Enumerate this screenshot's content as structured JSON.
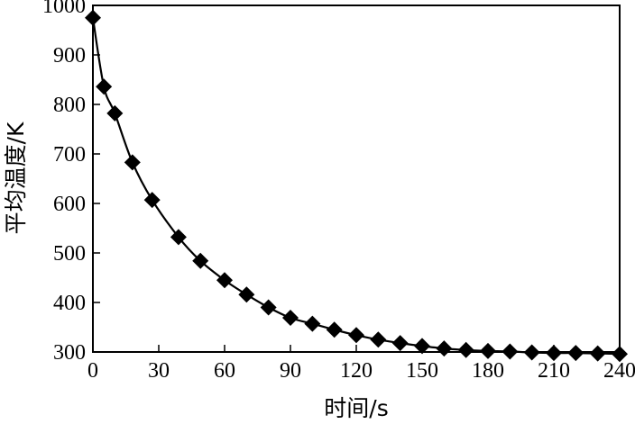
{
  "chart_data": {
    "type": "line",
    "title": "",
    "xlabel": "时间/s",
    "ylabel": "平均温度/K",
    "xlim": [
      0,
      240
    ],
    "ylim": [
      300,
      1000
    ],
    "xticks": [
      0,
      30,
      60,
      90,
      120,
      150,
      180,
      210,
      240
    ],
    "yticks": [
      300,
      400,
      500,
      600,
      700,
      800,
      900,
      1000
    ],
    "grid": false,
    "legend": "none",
    "series": [
      {
        "marker": "diamond",
        "color": "#000000",
        "points": [
          [
            0,
            975
          ],
          [
            5,
            836
          ],
          [
            10,
            782
          ],
          [
            18,
            683
          ],
          [
            27,
            607
          ],
          [
            39,
            532
          ],
          [
            49,
            484
          ],
          [
            60,
            445
          ],
          [
            70,
            416
          ],
          [
            80,
            390
          ],
          [
            90,
            369
          ],
          [
            100,
            357
          ],
          [
            110,
            345
          ],
          [
            120,
            334
          ],
          [
            130,
            325
          ],
          [
            140,
            318
          ],
          [
            150,
            312
          ],
          [
            160,
            307
          ],
          [
            170,
            304
          ],
          [
            180,
            302
          ],
          [
            190,
            301
          ],
          [
            200,
            299
          ],
          [
            210,
            298
          ],
          [
            220,
            298
          ],
          [
            230,
            297
          ],
          [
            240,
            296
          ]
        ]
      }
    ]
  }
}
